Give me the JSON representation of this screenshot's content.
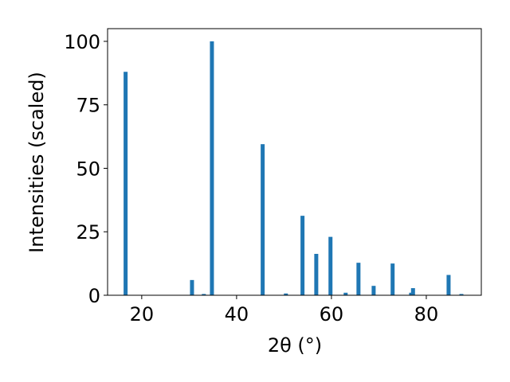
{
  "chart_data": {
    "type": "bar",
    "xlabel": "2θ (°)",
    "ylabel": "Intensities (scaled)",
    "x": [
      16.6,
      30.6,
      33.1,
      34.8,
      45.5,
      50.4,
      53.9,
      56.8,
      59.8,
      63.0,
      65.7,
      68.9,
      72.9,
      76.8,
      77.2,
      84.7,
      87.4
    ],
    "values": [
      88,
      6,
      0.5,
      100,
      59.5,
      0.7,
      31.3,
      16.3,
      23,
      1,
      12.8,
      3.7,
      12.5,
      1,
      2.8,
      8,
      0.5
    ],
    "color": "#1f77b4",
    "xlim": [
      12.8,
      91.6
    ],
    "xticks": [
      20,
      40,
      60,
      80
    ],
    "ylim": [
      0,
      105
    ],
    "yticks": [
      0,
      25,
      50,
      75,
      100
    ],
    "grid": false
  }
}
